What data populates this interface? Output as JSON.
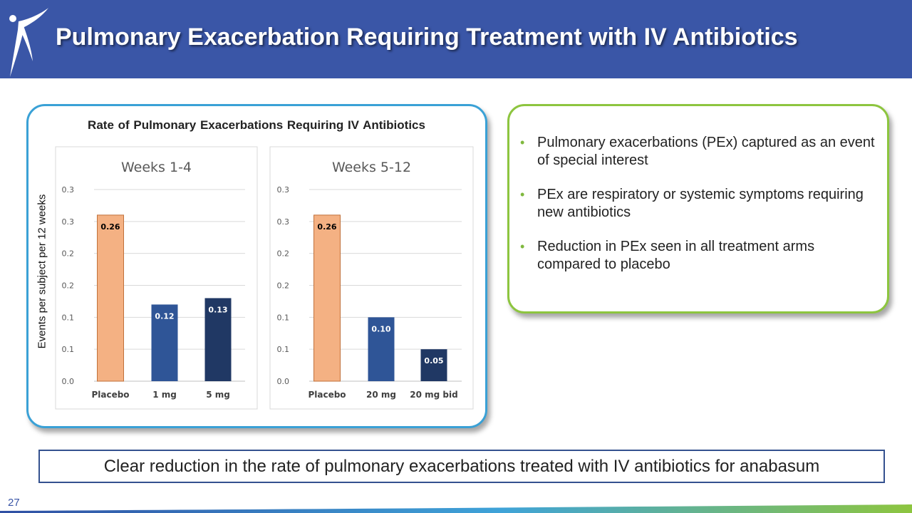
{
  "header": {
    "title": "Pulmonary Exacerbation Requiring Treatment with IV Antibiotics"
  },
  "chart_panel": {
    "title": "Rate of Pulmonary Exacerbations Requiring IV Antibiotics",
    "ylabel": "Events per subject per 12 weeks"
  },
  "chart_data": [
    {
      "type": "bar",
      "title": "Weeks 1-4",
      "categories": [
        "Placebo",
        "1 mg",
        "5 mg"
      ],
      "values": [
        0.26,
        0.12,
        0.13
      ],
      "value_labels": [
        "0.26",
        "0.12",
        "0.13"
      ],
      "bar_colors": [
        "#f4b183",
        "#2f5597",
        "#203864"
      ],
      "ylim": [
        0,
        0.3
      ],
      "y_ticks": [
        0.0,
        0.05,
        0.1,
        0.15,
        0.2,
        0.25,
        0.3
      ],
      "y_tick_labels": [
        "0.0",
        "0.1",
        "0.1",
        "0.2",
        "0.2",
        "0.3",
        "0.3"
      ],
      "grid": true
    },
    {
      "type": "bar",
      "title": "Weeks 5-12",
      "categories": [
        "Placebo",
        "20 mg",
        "20 mg bid"
      ],
      "values": [
        0.26,
        0.1,
        0.05
      ],
      "value_labels": [
        "0.26",
        "0.10",
        "0.05"
      ],
      "bar_colors": [
        "#f4b183",
        "#2f5597",
        "#203864"
      ],
      "ylim": [
        0,
        0.3
      ],
      "y_ticks": [
        0.0,
        0.05,
        0.1,
        0.15,
        0.2,
        0.25,
        0.3
      ],
      "y_tick_labels": [
        "0.0",
        "0.1",
        "0.1",
        "0.2",
        "0.2",
        "0.3",
        "0.3"
      ],
      "grid": true
    }
  ],
  "bullets": [
    "Pulmonary exacerbations (PEx) captured as an event of special interest",
    "PEx are respiratory or systemic symptoms requiring new antibiotics",
    "Reduction in PEx seen in all treatment arms compared to placebo"
  ],
  "callout": "Clear reduction in the rate of pulmonary exacerbations treated with IV antibiotics for anabasum",
  "page_number": "27",
  "colors": {
    "header_bg": "#3a56a7",
    "chart_border": "#3aa1d6",
    "bullet_border": "#8dc53f",
    "bullet_dot": "#7fb83e"
  }
}
